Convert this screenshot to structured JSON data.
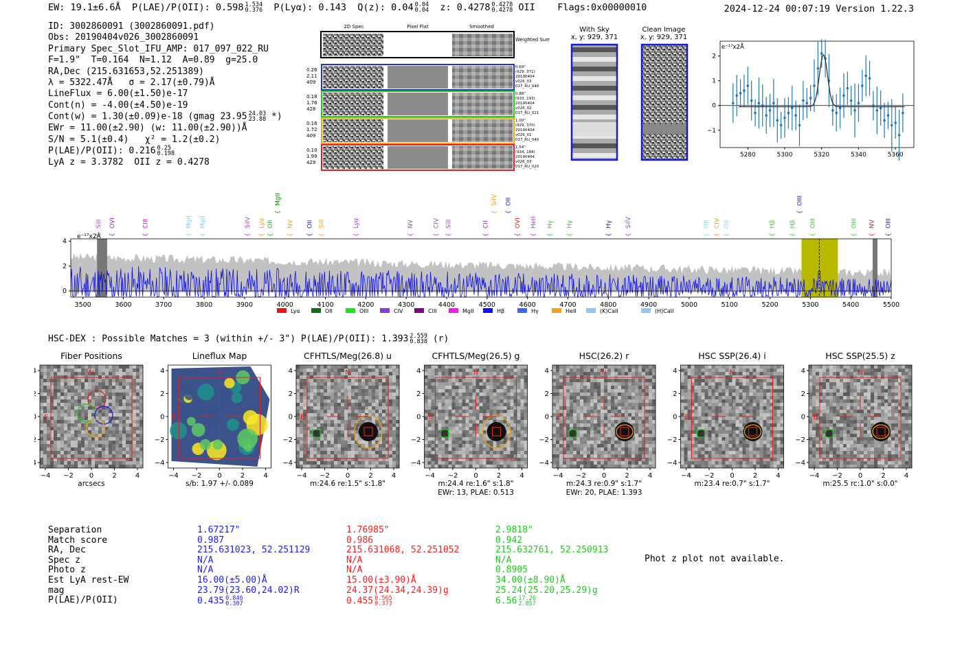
{
  "header": {
    "ew": "EW: 19.1±6.6Å",
    "plae": "P(LAE)/P(OII): 0.598",
    "plae_hi": "1.534",
    "plae_lo": "0.376",
    "plya": "P(Lyα): 0.143",
    "qz": "Q(z): 0.04",
    "qz_hi": "0.04",
    "qz_lo": "0.04",
    "z": "z: 0.4278",
    "z_hi": "0.4278",
    "z_lo": "0.4278",
    "zline": "OII",
    "flags": "Flags:0x00000010",
    "timestamp": "2024-12-24 00:07:19",
    "version": "Version 1.22.3"
  },
  "info": {
    "id": "ID: 3002860091 (3002860091.pdf)",
    "obs": "Obs: 20190404v026_3002860091",
    "primary": "Primary Spec_Slot_IFU_AMP: 017_097_022_RU",
    "params": "F=1.9\"  T=0.164  N=1.12  A=0.89  g=25.0",
    "radec": "RA,Dec (215.631653,52.251389)",
    "lambda": "λ = 5322.47Å   σ = 2.17(±0.79)Å",
    "lineflux": "LineFlux = 6.00(±1.50)e-17",
    "contn": "Cont(n) = -4.00(±4.50)e-19",
    "contw": "Cont(w) = 1.30(±0.09)e-18 (gmag 23.95",
    "contw_hi": "24.03",
    "contw_lo": "23.88",
    "contw_end": "*)",
    "ewr": "EWr = 11.00(±2.90) (w: 11.00(±2.90))Å",
    "sn": "S/N = 5.1(±0.4)   χ² = 1.2(±0.2)",
    "plae": "P(LAE)/P(OII): 0.216",
    "plae_hi": "0.25",
    "plae_lo": "0.198",
    "lya": "LyA z = 3.3782  OII z = 0.4278"
  },
  "spec2d": {
    "headers": [
      "2D Spec",
      "Pixel Flat",
      "Smoothed"
    ],
    "weighted_label": "Weighted Sum",
    "rows": [
      {
        "left": [
          "0.26",
          "2.11",
          "409"
        ],
        "right": [
          "0.69\"",
          "(929, 371)",
          "20190404",
          "v026_03",
          "017_RU_040"
        ],
        "color": "#1f2fd0"
      },
      {
        "left": [
          "0.18",
          "1.76",
          "428"
        ],
        "right": [
          "0.88\"",
          "(933, 193)",
          "20190404",
          "v026_02",
          "017_RU_021"
        ],
        "color": "#22cc22"
      },
      {
        "left": [
          "0.16",
          "1.72",
          "409"
        ],
        "right": [
          "1.00\"",
          "(929, 370)",
          "20190404",
          "v026_01",
          "017_RU_040"
        ],
        "color": "#f2a11c"
      },
      {
        "left": [
          "0.10",
          "1.99",
          "429"
        ],
        "right": [
          "1.54\"",
          "(934, 184)",
          "20190404",
          "v026_03",
          "017_RU_020"
        ],
        "color": "#e02020"
      }
    ]
  },
  "sky": {
    "with_sky": "With Sky",
    "with_sky_xy": "x, y: 929, 371",
    "clean": "Clean Image",
    "clean_xy": "x, y: 929, 371"
  },
  "zoom_plot": {
    "ylabel": "e⁻¹⁷x2Å",
    "xticks": [
      "5280",
      "5300",
      "5320",
      "5340",
      "5360"
    ],
    "yticks": [
      "2",
      "1",
      "0",
      "−1"
    ],
    "points": [
      [
        5272,
        0.1
      ],
      [
        5274,
        0.4
      ],
      [
        5276,
        0.5
      ],
      [
        5278,
        0.6
      ],
      [
        5280,
        0.8
      ],
      [
        5282,
        0.2
      ],
      [
        5284,
        -0.3
      ],
      [
        5286,
        0.1
      ],
      [
        5288,
        0.0
      ],
      [
        5290,
        -0.4
      ],
      [
        5292,
        -0.2
      ],
      [
        5294,
        0.1
      ],
      [
        5296,
        -0.6
      ],
      [
        5298,
        -0.8
      ],
      [
        5300,
        -0.5
      ],
      [
        5302,
        -0.3
      ],
      [
        5304,
        -0.1
      ],
      [
        5306,
        -0.4
      ],
      [
        5308,
        -0.8
      ],
      [
        5310,
        0.2
      ],
      [
        5312,
        0.1
      ],
      [
        5314,
        0.3
      ],
      [
        5316,
        0.8
      ],
      [
        5318,
        1.5
      ],
      [
        5320,
        2.1
      ],
      [
        5322,
        1.9
      ],
      [
        5324,
        1.0
      ],
      [
        5326,
        -0.2
      ],
      [
        5328,
        -0.3
      ],
      [
        5330,
        -0.1
      ],
      [
        5332,
        0.4
      ],
      [
        5334,
        0.7
      ],
      [
        5336,
        0.2
      ],
      [
        5338,
        -0.2
      ],
      [
        5340,
        0.1
      ],
      [
        5342,
        0.8
      ],
      [
        5344,
        1.2
      ],
      [
        5346,
        1.1
      ],
      [
        5348,
        0.0
      ],
      [
        5350,
        -0.2
      ],
      [
        5352,
        -0.1
      ],
      [
        5354,
        -0.6
      ],
      [
        5356,
        -0.4
      ],
      [
        5358,
        -0.8
      ],
      [
        5360,
        -0.7
      ],
      [
        5362,
        -1.2
      ],
      [
        5364,
        -0.3
      ]
    ]
  },
  "chart_data": {
    "type": "line",
    "title": "",
    "ylabel": "e⁻¹⁷x2Å",
    "xlim": [
      3470,
      5500
    ],
    "ylim": [
      -0.5,
      4.2
    ],
    "xticks": [
      "3500",
      "3600",
      "3700",
      "3800",
      "3900",
      "4000",
      "4100",
      "4200",
      "4300",
      "4400",
      "4500",
      "4600",
      "4700",
      "4800",
      "4900",
      "5000",
      "5100",
      "5200",
      "5300",
      "5400",
      "5500"
    ],
    "yticks": [
      "4",
      "2",
      "0"
    ],
    "highlight_band": [
      5278,
      5368
    ],
    "line_marker": 5322,
    "lines_top": [
      {
        "w": 3997,
        "label": "MgII",
        "color": "#009900"
      },
      {
        "w": 4548,
        "label": "SiIV",
        "color": "#f0a010"
      },
      {
        "w": 4584,
        "label": "OII",
        "color": "#2222dd"
      },
      {
        "w": 5326,
        "label": "OIII",
        "color": "#2222dd"
      }
    ],
    "lines_mid": [
      {
        "w": 3540,
        "label": "SiII",
        "color": "#aa44cc"
      },
      {
        "w": 3575,
        "label": "OVI",
        "color": "#8a2be2"
      },
      {
        "w": 3660,
        "label": "CIII",
        "color": "#cc00cc"
      },
      {
        "w": 3770,
        "label": "MgII",
        "color": "#87ceeb"
      },
      {
        "w": 3805,
        "label": "MgII",
        "color": "#87ceeb"
      },
      {
        "w": 3920,
        "label": "SiIV",
        "color": "#aa44cc"
      },
      {
        "w": 3956,
        "label": "Lyα",
        "color": "#f0a010"
      },
      {
        "w": 3978,
        "label": "OII",
        "color": "#22aa22"
      },
      {
        "w": 4028,
        "label": "NV",
        "color": "#f0a010"
      },
      {
        "w": 4078,
        "label": "OII",
        "color": "#2222dd"
      },
      {
        "w": 4108,
        "label": "SiII",
        "color": "#f0a010"
      },
      {
        "w": 4196,
        "label": "Lyα",
        "color": "#aa44cc"
      },
      {
        "w": 4335,
        "label": "NV",
        "color": "#aa44cc"
      },
      {
        "w": 4400,
        "label": "CIV",
        "color": "#aa44cc"
      },
      {
        "w": 4432,
        "label": "SiII",
        "color": "#aa44cc"
      },
      {
        "w": 4526,
        "label": "CII",
        "color": "#cc00cc"
      },
      {
        "w": 4608,
        "label": "OVI",
        "color": "#dd2222"
      },
      {
        "w": 4648,
        "label": "HeII",
        "color": "#aa44cc"
      },
      {
        "w": 4690,
        "label": "Hγ",
        "color": "#33cc33"
      },
      {
        "w": 4740,
        "label": "Hγ",
        "color": "#33cc33"
      },
      {
        "w": 4840,
        "label": "Hγ",
        "color": "#2222dd"
      },
      {
        "w": 4890,
        "label": "SiIV",
        "color": "#aa44cc"
      },
      {
        "w": 5088,
        "label": "OII",
        "color": "#87ceeb"
      },
      {
        "w": 5115,
        "label": "CIV",
        "color": "#f0a010"
      },
      {
        "w": 5140,
        "label": "OII",
        "color": "#87ceeb"
      },
      {
        "w": 5256,
        "label": "Hβ",
        "color": "#33cc33"
      },
      {
        "w": 5308,
        "label": "Hβ",
        "color": "#33cc33"
      },
      {
        "w": 5360,
        "label": "OIII",
        "color": "#33cc33"
      },
      {
        "w": 5465,
        "label": "OIII",
        "color": "#33cc33"
      },
      {
        "w": 5510,
        "label": "NV",
        "color": "#dd2222"
      },
      {
        "w": 5552,
        "label": "OIII",
        "color": "#2222dd"
      }
    ],
    "legend": [
      {
        "label": "Lyα",
        "color": "#e8141c"
      },
      {
        "label": "OII",
        "color": "#107010"
      },
      {
        "label": "OIII",
        "color": "#1ee51e"
      },
      {
        "label": "CIV",
        "color": "#8a3ed8"
      },
      {
        "label": "CIII",
        "color": "#7a0a7a"
      },
      {
        "label": "MgII",
        "color": "#f01cf0"
      },
      {
        "label": "Hβ",
        "color": "#1010f0"
      },
      {
        "label": "Hγ",
        "color": "#3a6af0"
      },
      {
        "label": "HeII",
        "color": "#f5a11a"
      },
      {
        "label": "(K)CaII",
        "color": "#8ccbee"
      },
      {
        "label": "(H)CaII",
        "color": "#8ccbee"
      }
    ]
  },
  "hsc": {
    "line": "HSC-DEX : Possible Matches = 3 (within +/- 3\")  P(LAE)/P(OII): 1.393",
    "hi": "2.559",
    "lo": "0.838",
    "band": "(r)"
  },
  "cutouts": [
    {
      "title": "Fiber Positions",
      "cap1": "arcsecs",
      "cap2": ""
    },
    {
      "title": "Lineflux Map",
      "cap1": "s/b: 1.97 +/- 0.089",
      "cap2": ""
    },
    {
      "title": "CFHTLS/Meg(26.8) u",
      "cap1": "m:24.6  re:1.5\"  s:1.8\"",
      "cap2": ""
    },
    {
      "title": "CFHTLS/Meg(26.5) g",
      "cap1": "m:24.4  re:1.6\"  s:1.8\"",
      "cap2": "EWr: 13, PLAE: 0.513"
    },
    {
      "title": "HSC(26.2) r",
      "cap1": "m:24.3  re:0.9\"  s:1.7\"",
      "cap2": "EWr: 20, PLAE: 1.393"
    },
    {
      "title": "HSC SSP(26.4) i",
      "cap1": "m:23.4  re:0.7\"  s:1.7\"",
      "cap2": ""
    },
    {
      "title": "HSC SSP(25.5) z",
      "cap1": "m:25.5  rc:1.0\"  s:0.0\"",
      "cap2": ""
    }
  ],
  "cutout_axis": {
    "ticks": [
      "4",
      "2",
      "0",
      "−2",
      "−4"
    ],
    "xticks": [
      "−4",
      "−2",
      "0",
      "2",
      "4"
    ],
    "north": "N",
    "east": "E"
  },
  "matches": {
    "labels": [
      "Separation",
      "Match score",
      "RA, Dec",
      "Spec z",
      "Photo z",
      "Est LyA rest-EW",
      "mag",
      "P(LAE)/P(OII)"
    ],
    "columns": [
      {
        "color": "#1a1aff",
        "values": [
          "1.67217\"",
          "0.987",
          "215.631023, 52.251129",
          "N/A",
          "N/A",
          "16.00(±5.00)Å",
          "23.79(23.60,24.02)R",
          "0.435"
        ],
        "hi": "0.846",
        "lo": "0.307"
      },
      {
        "color": "#ff1a1a",
        "values": [
          "1.76985\"",
          "0.986",
          "215.631068, 52.251052",
          "N/A",
          "N/A",
          "15.00(±3.90)Å",
          "24.37(24.34,24.39)g",
          "0.455"
        ],
        "hi": "0.565",
        "lo": "0.373"
      },
      {
        "color": "#1acc1a",
        "values": [
          "2.9818\"",
          "0.942",
          "215.632761, 52.250913",
          "N/A",
          "0.8905",
          "34.00(±8.90)Å",
          "25.24(25.20,25.29)g",
          "6.56"
        ],
        "hi": "17.26",
        "lo": "2.857"
      }
    ],
    "photz_note": "Phot z plot not available."
  }
}
